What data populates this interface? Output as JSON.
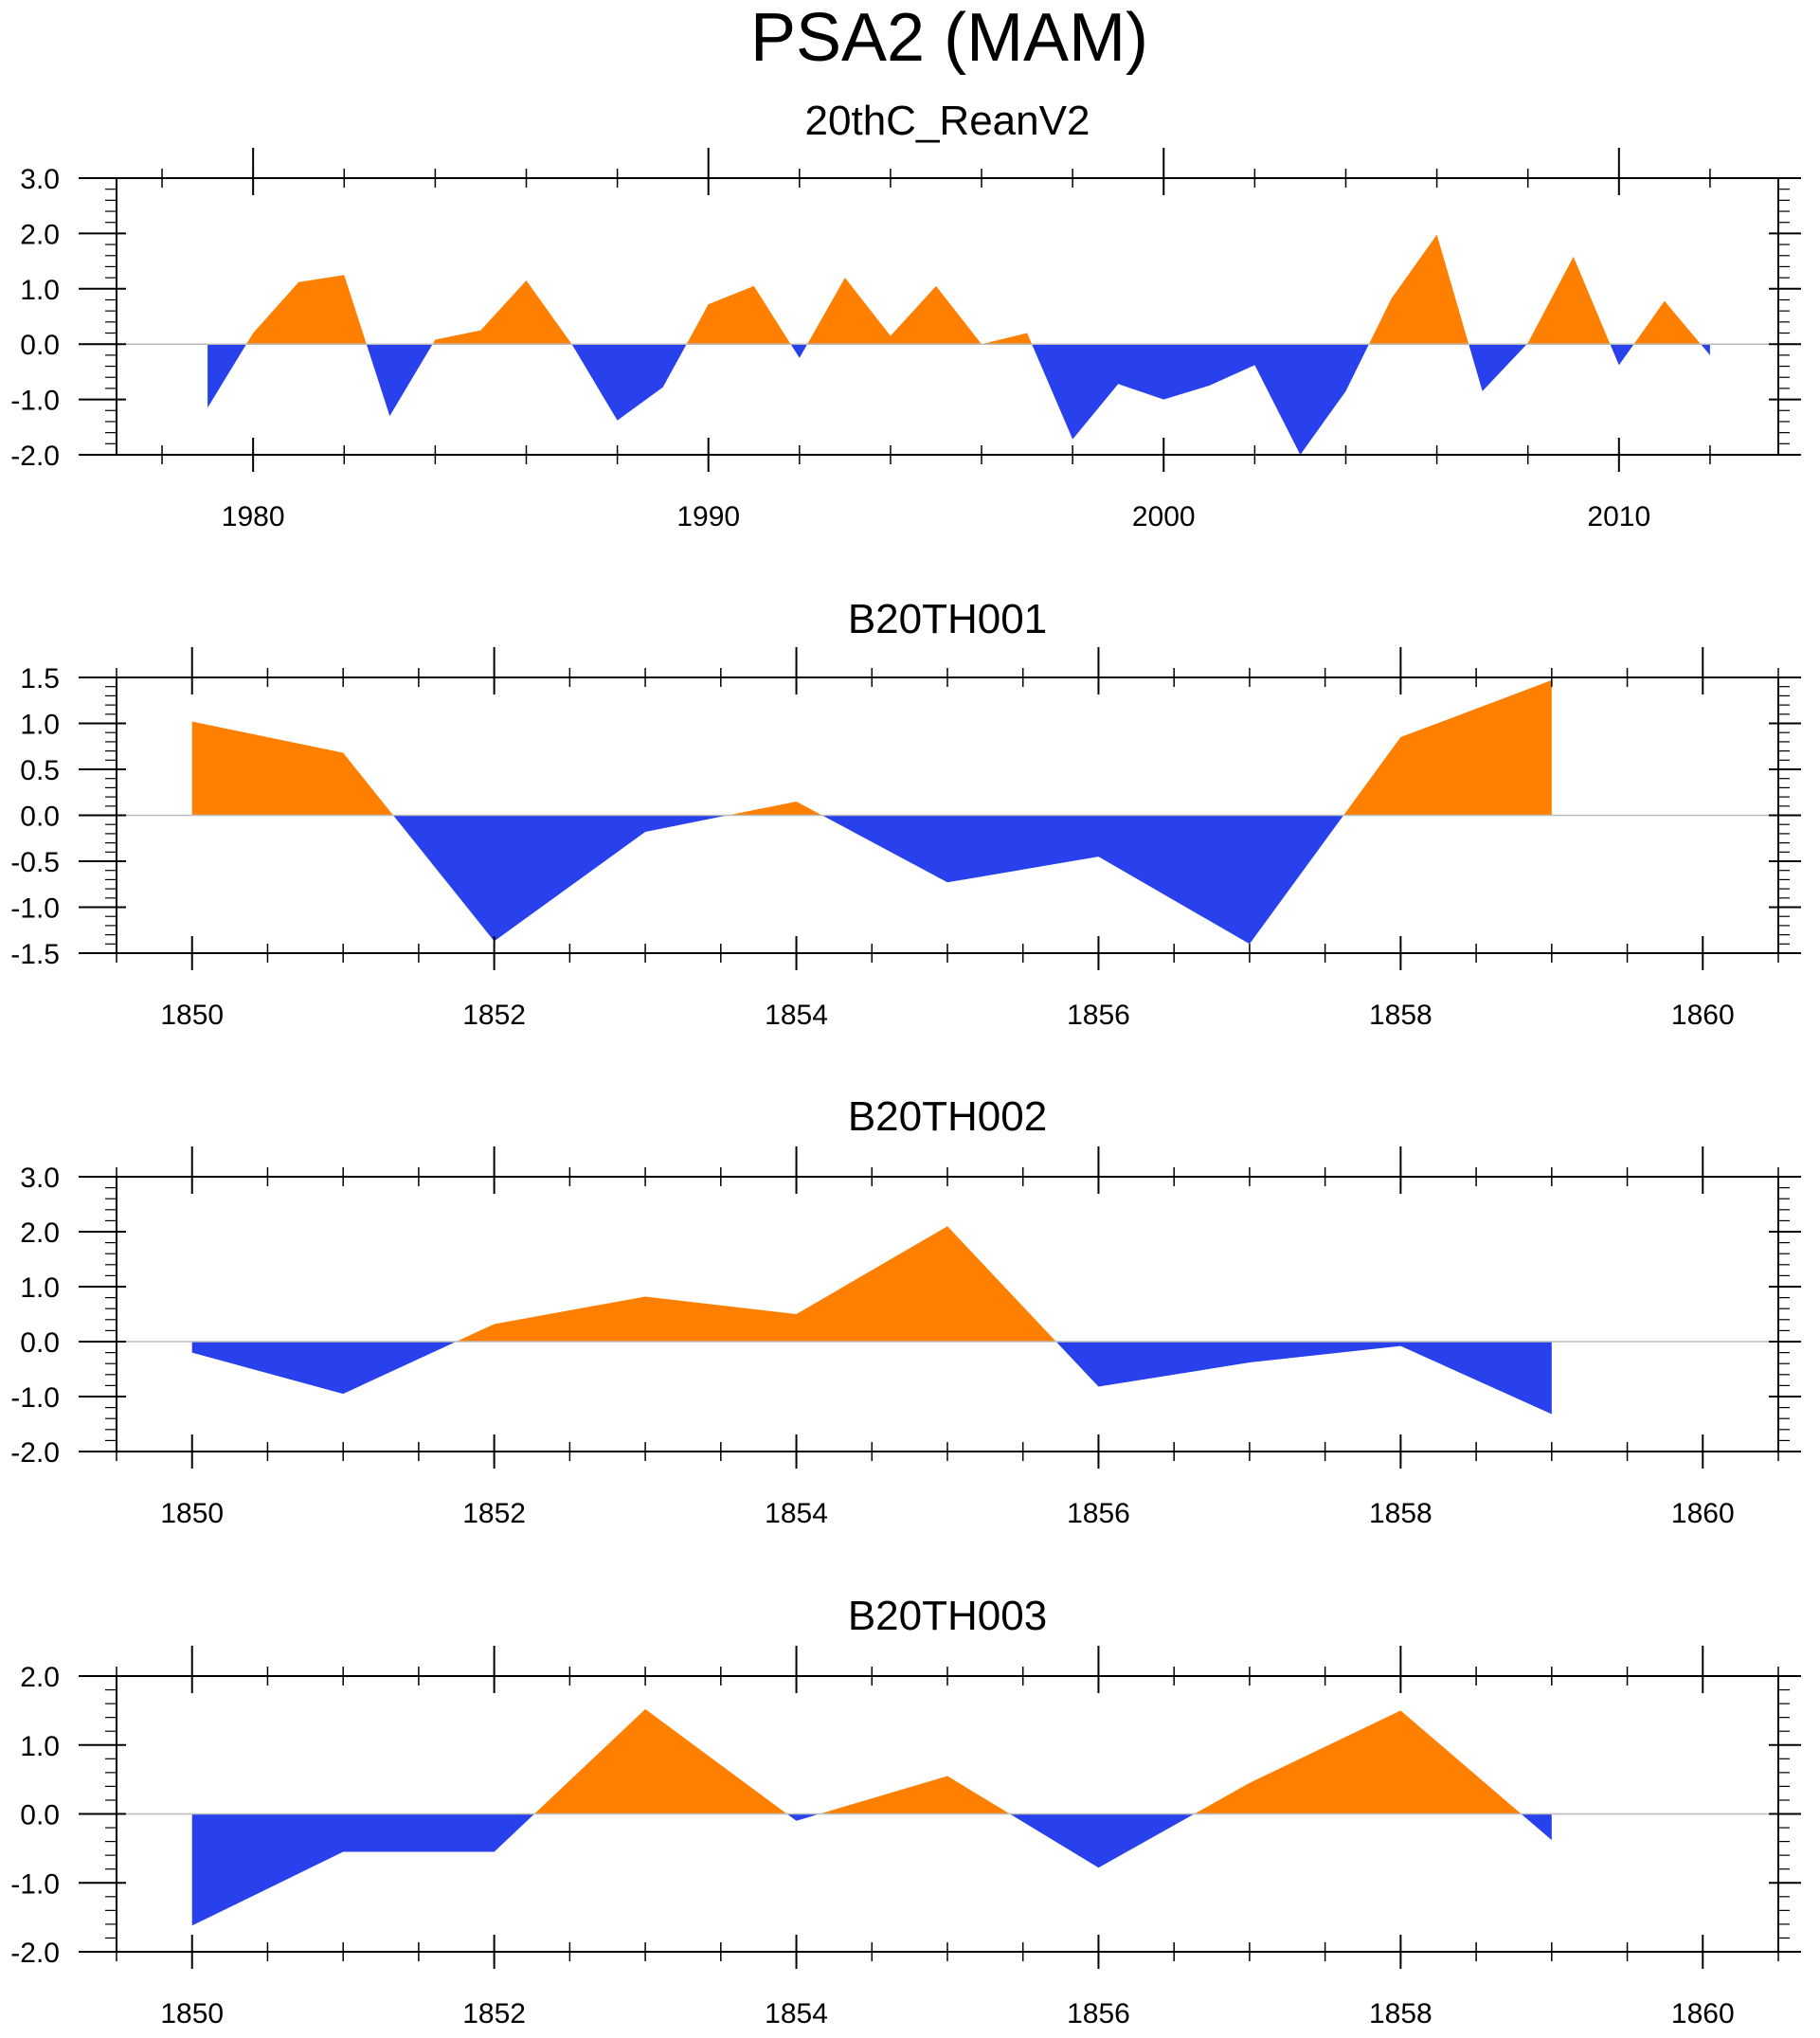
{
  "figure": {
    "title": "PSA2 (MAM)"
  },
  "colors": {
    "positive": "#ff8000",
    "negative": "#2841ed",
    "axis": "#000000",
    "zero_line": "#bbbbbb"
  },
  "chart_data": [
    {
      "type": "area",
      "title": "20thC_ReanV2",
      "x": [
        1979,
        1980,
        1981,
        1982,
        1983,
        1984,
        1985,
        1986,
        1987,
        1988,
        1989,
        1990,
        1991,
        1992,
        1993,
        1994,
        1995,
        1996,
        1997,
        1998,
        1999,
        2000,
        2001,
        2002,
        2003,
        2004,
        2005,
        2006,
        2007,
        2008,
        2009,
        2010,
        2011,
        2012
      ],
      "y": [
        -1.15,
        0.2,
        1.12,
        1.25,
        -1.3,
        0.08,
        0.25,
        1.15,
        0.0,
        -1.38,
        -0.78,
        0.72,
        1.05,
        -0.25,
        1.2,
        0.15,
        1.05,
        0.0,
        0.2,
        -1.72,
        -0.72,
        -1.0,
        -0.75,
        -0.38,
        -2.0,
        -0.85,
        0.82,
        1.98,
        -0.85,
        0.02,
        1.58,
        -0.38,
        0.78,
        -0.2
      ],
      "xlim": [
        1977,
        2013.5
      ],
      "ylim": [
        -2.0,
        3.0
      ],
      "xticks": [
        1980,
        1990,
        2000,
        2010
      ],
      "xtick_labels": [
        "1980",
        "1990",
        "2000",
        "2010"
      ],
      "x_minor_step": 2,
      "yticks": [
        -2.0,
        -1.0,
        0.0,
        1.0,
        2.0,
        3.0
      ],
      "ytick_labels": [
        "-2.0",
        "-1.0",
        "0.0",
        "1.0",
        "2.0",
        "3.0"
      ],
      "y_minor_step": 0.2
    },
    {
      "type": "area",
      "title": "B20TH001",
      "x": [
        1850,
        1851,
        1852,
        1853,
        1854,
        1855,
        1856,
        1857,
        1858,
        1859
      ],
      "y": [
        1.02,
        0.68,
        -1.37,
        -0.18,
        0.15,
        -0.73,
        -0.45,
        -1.4,
        0.85,
        1.47
      ],
      "xlim": [
        1849.5,
        1860.5
      ],
      "ylim": [
        -1.5,
        1.5
      ],
      "xticks": [
        1850,
        1852,
        1854,
        1856,
        1858,
        1860
      ],
      "xtick_labels": [
        "1850",
        "1852",
        "1854",
        "1856",
        "1858",
        "1860"
      ],
      "x_minor_step": 0.5,
      "yticks": [
        -1.5,
        -1.0,
        -0.5,
        0.0,
        0.5,
        1.0,
        1.5
      ],
      "ytick_labels": [
        "-1.5",
        "-1.0",
        "-0.5",
        "0.0",
        "0.5",
        "1.0",
        "1.5"
      ],
      "y_minor_step": 0.1
    },
    {
      "type": "area",
      "title": "B20TH002",
      "x": [
        1850,
        1851,
        1852,
        1853,
        1854,
        1855,
        1856,
        1857,
        1858,
        1859
      ],
      "y": [
        -0.2,
        -0.95,
        0.32,
        0.82,
        0.5,
        2.1,
        -0.82,
        -0.38,
        -0.08,
        -1.32
      ],
      "xlim": [
        1849.5,
        1860.5
      ],
      "ylim": [
        -2.0,
        3.0
      ],
      "xticks": [
        1850,
        1852,
        1854,
        1856,
        1858,
        1860
      ],
      "xtick_labels": [
        "1850",
        "1852",
        "1854",
        "1856",
        "1858",
        "1860"
      ],
      "x_minor_step": 0.5,
      "yticks": [
        -2.0,
        -1.0,
        0.0,
        1.0,
        2.0,
        3.0
      ],
      "ytick_labels": [
        "-2.0",
        "-1.0",
        "0.0",
        "1.0",
        "2.0",
        "3.0"
      ],
      "y_minor_step": 0.2
    },
    {
      "type": "area",
      "title": "B20TH003",
      "x": [
        1850,
        1851,
        1852,
        1853,
        1854,
        1855,
        1856,
        1857,
        1858,
        1859
      ],
      "y": [
        -1.62,
        -0.55,
        -0.55,
        1.52,
        -0.1,
        0.55,
        -0.78,
        0.45,
        1.5,
        -0.38
      ],
      "xlim": [
        1849.5,
        1860.5
      ],
      "ylim": [
        -2.0,
        2.0
      ],
      "xticks": [
        1850,
        1852,
        1854,
        1856,
        1858,
        1860
      ],
      "xtick_labels": [
        "1850",
        "1852",
        "1854",
        "1856",
        "1858",
        "1860"
      ],
      "x_minor_step": 0.5,
      "yticks": [
        -2.0,
        -1.0,
        0.0,
        1.0,
        2.0
      ],
      "ytick_labels": [
        "-2.0",
        "-1.0",
        "0.0",
        "1.0",
        "2.0"
      ],
      "y_minor_step": 0.2
    }
  ]
}
